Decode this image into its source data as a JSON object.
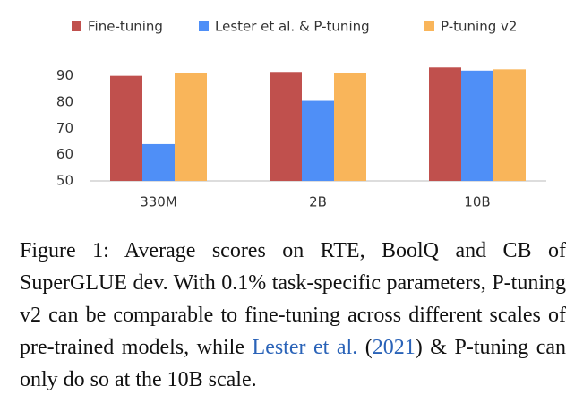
{
  "chart_data": {
    "type": "bar",
    "categories": [
      "330M",
      "2B",
      "10B"
    ],
    "series": [
      {
        "name": "Fine-tuning",
        "color": "#c0504d",
        "values": [
          90,
          91.5,
          93.2
        ]
      },
      {
        "name": "Lester et al. & P-tuning",
        "color": "#4f8ff7",
        "values": [
          64,
          80.5,
          92
        ]
      },
      {
        "name": "P-tuning v2",
        "color": "#f9b55a",
        "values": [
          91,
          91,
          92.5
        ]
      }
    ],
    "ylim": [
      50,
      95
    ],
    "yticks": [
      50,
      60,
      70,
      80,
      90
    ],
    "grid": false,
    "legend": "top"
  },
  "caption": {
    "pre": "Figure 1: Average scores on RTE, BoolQ and CB of SuperGLUE dev. With 0.1% task-specific parameters, P-tuning v2 can be comparable to fine-tuning across different scales of pre-trained models, while ",
    "link1": "Lester et al.",
    "mid": " (",
    "link2": "2021",
    "post": ") & P-tuning can only do so at the 10B scale."
  }
}
